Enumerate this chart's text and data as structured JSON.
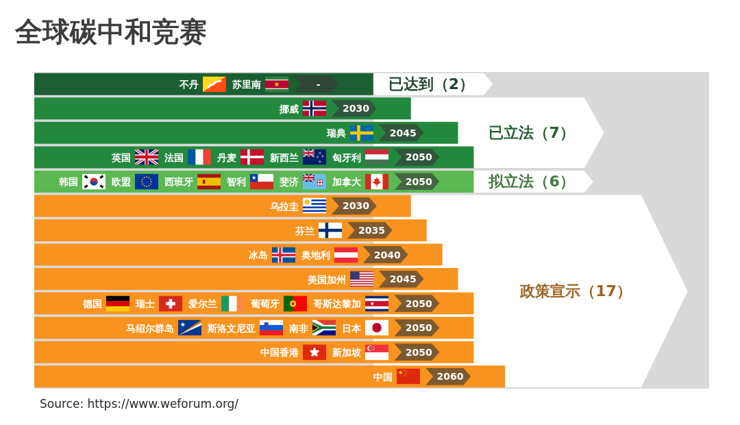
{
  "chart_data": {
    "type": "bar",
    "orientation": "horizontal",
    "title": "全球碳中和竞赛",
    "categories": [
      "不丹 苏里南",
      "挪威",
      "瑞典",
      "英国 法国 丹麦 新西兰 匈牙利",
      "韩国 欧盟 西班牙 智利 斐济 加拿大",
      "乌拉圭",
      "芬兰",
      "冰岛 奥地利",
      "美国加州",
      "德国 瑞士 爱尔兰 葡萄牙 哥斯达黎加",
      "马绍尔群岛 斯洛文尼亚 南非 日本",
      "中国香港 新加坡",
      "中国"
    ],
    "series": [
      {
        "name": "已达到（2）",
        "color": "#1b5e31",
        "values": [
          2018,
          null,
          null,
          null,
          null,
          null,
          null,
          null,
          null,
          null,
          null,
          null,
          null
        ],
        "value_labels": [
          "-",
          null,
          null,
          null,
          null,
          null,
          null,
          null,
          null,
          null,
          null,
          null,
          null
        ]
      },
      {
        "name": "已立法（7）",
        "color": "#22883d",
        "values": [
          null,
          2030,
          2045,
          2050,
          null,
          null,
          null,
          null,
          null,
          null,
          null,
          null,
          null
        ],
        "value_labels": [
          null,
          "2030",
          "2045",
          "2050",
          null,
          null,
          null,
          null,
          null,
          null,
          null,
          null,
          null
        ]
      },
      {
        "name": "拟立法（6）",
        "color": "#5bb853",
        "values": [
          null,
          null,
          null,
          null,
          2050,
          null,
          null,
          null,
          null,
          null,
          null,
          null,
          null
        ],
        "value_labels": [
          null,
          null,
          null,
          null,
          "2050",
          null,
          null,
          null,
          null,
          null,
          null,
          null,
          null
        ]
      },
      {
        "name": "政策宣示（17）",
        "color": "#f7931e",
        "values": [
          null,
          null,
          null,
          null,
          null,
          2030,
          2035,
          2040,
          2045,
          2050,
          2050,
          2050,
          2060
        ],
        "value_labels": [
          null,
          null,
          null,
          null,
          null,
          "2030",
          "2035",
          "2040",
          "2045",
          "2050",
          "2050",
          "2050",
          "2060"
        ]
      }
    ],
    "xlim": [
      1910,
      2125
    ],
    "tick_labels": "y",
    "annotations": [
      "Source: https://www.weforum.org/"
    ]
  }
}
